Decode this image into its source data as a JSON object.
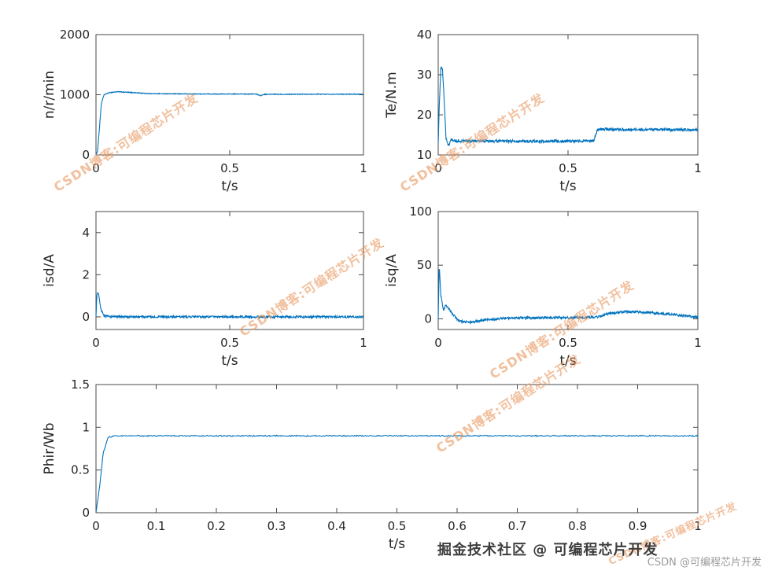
{
  "figure": {
    "background": "#ffffff",
    "line_color": "#0072BD",
    "axis_color": "#4a4a4a",
    "label_color": "#252525"
  },
  "watermark": {
    "text": "CSDN博客:可编程芯片开发",
    "color": "#E8975F",
    "corner_text": "CSDN @可编程芯片开发",
    "corner_color": "#9b9b9b"
  },
  "footer": {
    "text": "掘金技术社区 @ 可编程芯片开发",
    "color": "#3d3d3d"
  },
  "chart_data": [
    {
      "id": "speed",
      "type": "line",
      "title": "",
      "xlabel": "t/s",
      "ylabel": "n/r/min",
      "xlim": [
        0,
        1
      ],
      "ylim": [
        0,
        2000
      ],
      "xticks": [
        0,
        0.5,
        1
      ],
      "yticks": [
        0,
        1000,
        2000
      ],
      "grid": false,
      "noise": 6,
      "x": [
        0,
        0.006,
        0.012,
        0.02,
        0.03,
        0.05,
        0.08,
        0.12,
        0.2,
        0.3,
        0.45,
        0.6,
        0.615,
        0.63,
        0.8,
        1
      ],
      "y": [
        0,
        60,
        400,
        850,
        1000,
        1035,
        1050,
        1040,
        1020,
        1015,
        1012,
        1012,
        985,
        1008,
        1010,
        1010
      ]
    },
    {
      "id": "torque",
      "type": "line",
      "title": "",
      "xlabel": "t/s",
      "ylabel": "Te/N.m",
      "xlim": [
        0,
        1
      ],
      "ylim": [
        10,
        40
      ],
      "xticks": [
        0,
        0.5,
        1
      ],
      "yticks": [
        10,
        20,
        30,
        40
      ],
      "grid": false,
      "noise": 0.35,
      "x": [
        0,
        0.004,
        0.01,
        0.016,
        0.022,
        0.03,
        0.04,
        0.05,
        0.07,
        0.1,
        0.2,
        0.4,
        0.6,
        0.612,
        0.62,
        0.8,
        1
      ],
      "y": [
        13,
        22,
        31.5,
        32,
        25,
        14,
        12.3,
        13.8,
        13.3,
        13.5,
        13.4,
        13.4,
        13.5,
        16.2,
        16.4,
        16.3,
        16.3
      ]
    },
    {
      "id": "isd",
      "type": "line",
      "title": "",
      "xlabel": "t/s",
      "ylabel": "isd/A",
      "xlim": [
        0,
        1
      ],
      "ylim": [
        -0.6,
        5
      ],
      "xticks": [
        0,
        0.5,
        1
      ],
      "yticks": [
        0,
        2,
        4
      ],
      "grid": false,
      "noise": 0.05,
      "x": [
        0,
        0.004,
        0.01,
        0.018,
        0.03,
        0.05,
        0.1,
        0.3,
        0.6,
        1
      ],
      "y": [
        0,
        1.15,
        1.05,
        0.35,
        0.05,
        0.02,
        0,
        0,
        0,
        0
      ]
    },
    {
      "id": "isq",
      "type": "line",
      "title": "",
      "xlabel": "t/s",
      "ylabel": "isq/A",
      "xlim": [
        0,
        1
      ],
      "ylim": [
        -10,
        100
      ],
      "xticks": [
        0,
        0.5,
        1
      ],
      "yticks": [
        0,
        50,
        100
      ],
      "grid": false,
      "noise": 1.1,
      "x": [
        0,
        0.004,
        0.01,
        0.02,
        0.03,
        0.05,
        0.08,
        0.12,
        0.18,
        0.25,
        0.4,
        0.55,
        0.62,
        0.66,
        0.72,
        0.8,
        0.9,
        1
      ],
      "y": [
        0,
        50,
        22,
        8,
        13,
        6,
        -2,
        -3.5,
        -1,
        0.5,
        1,
        1,
        2,
        5,
        6.5,
        6,
        4,
        1.5
      ]
    },
    {
      "id": "phir",
      "type": "line",
      "title": "",
      "xlabel": "t/s",
      "ylabel": "Phir/Wb",
      "xlim": [
        0,
        1
      ],
      "ylim": [
        0,
        1.5
      ],
      "xticks": [
        0,
        0.1,
        0.2,
        0.3,
        0.4,
        0.5,
        0.6,
        0.7,
        0.8,
        0.9,
        1
      ],
      "yticks": [
        0,
        0.5,
        1,
        1.5
      ],
      "grid": false,
      "noise": 0.007,
      "x": [
        0,
        0.006,
        0.012,
        0.02,
        0.03,
        0.05,
        0.5,
        1
      ],
      "y": [
        0,
        0.3,
        0.7,
        0.88,
        0.9,
        0.9,
        0.9,
        0.9
      ]
    }
  ]
}
